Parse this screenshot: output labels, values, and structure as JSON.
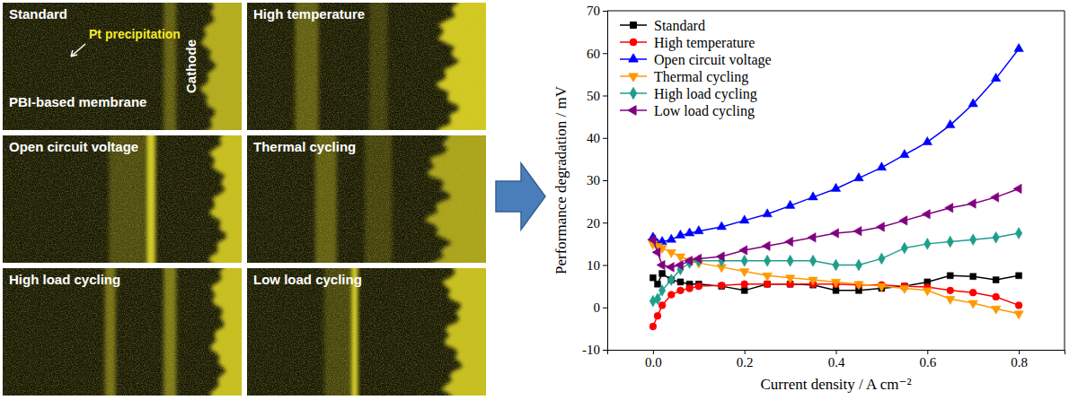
{
  "micrographs": {
    "panels": [
      {
        "title": "Standard",
        "pt_label": "Pt precipitation",
        "membrane_label": "PBI-based membrane",
        "cathode_label": "Cathode"
      },
      {
        "title": "High temperature"
      },
      {
        "title": "Open circuit voltage"
      },
      {
        "title": "Thermal cycling"
      },
      {
        "title": "High load cycling"
      },
      {
        "title": "Low load cycling"
      }
    ]
  },
  "chart_data": {
    "type": "line",
    "x_label": "Current density / A cm⁻²",
    "y_label": "Performance degradation / mV",
    "xlim": [
      -0.1,
      0.9
    ],
    "ylim": [
      -10,
      70
    ],
    "xticks": [
      {
        "value": 0,
        "label": "0.0"
      },
      0.2,
      0.4,
      0.6,
      0.8
    ],
    "yticks": [
      -10,
      0,
      10,
      20,
      30,
      40,
      50,
      60,
      70
    ],
    "grid": false,
    "legend": "upper left",
    "x": [
      0,
      0.01,
      0.02,
      0.04,
      0.06,
      0.08,
      0.1,
      0.15,
      0.2,
      0.25,
      0.3,
      0.35,
      0.4,
      0.45,
      0.5,
      0.55,
      0.6,
      0.65,
      0.7,
      0.75,
      0.8
    ],
    "series": [
      {
        "name": "Standard",
        "color": "#000000",
        "marker": "square",
        "values": [
          7,
          5.5,
          8,
          6.5,
          6,
          5.5,
          5.5,
          5,
          4,
          5.5,
          5.5,
          5.3,
          4,
          4,
          4.5,
          5,
          6,
          7.5,
          7.3,
          6.5,
          7.5
        ]
      },
      {
        "name": "High temperature",
        "color": "#ff0000",
        "marker": "circle",
        "values": [
          -4.5,
          -2,
          0.5,
          3,
          4,
          4.5,
          5,
          5.2,
          5.5,
          5.5,
          5.5,
          5.5,
          5.5,
          5.3,
          5.3,
          5,
          4.8,
          4,
          3.5,
          2.5,
          0.5
        ]
      },
      {
        "name": "Open circuit voltage",
        "color": "#0000ff",
        "marker": "triangle-up",
        "values": [
          16.5,
          15,
          15.5,
          16,
          17,
          17.5,
          18,
          19,
          20.5,
          22,
          24,
          26,
          28,
          30.5,
          33,
          36,
          39,
          43,
          48,
          54,
          61
        ]
      },
      {
        "name": "Thermal cycling",
        "color": "#ff9900",
        "marker": "triangle-down",
        "values": [
          15,
          14.5,
          14,
          13,
          12,
          11,
          10.5,
          9.5,
          8.5,
          7.5,
          7,
          6.5,
          6,
          5.5,
          5,
          4.5,
          4,
          2,
          1,
          -0.3,
          -1.5
        ]
      },
      {
        "name": "High load cycling",
        "color": "#1f9e8c",
        "marker": "diamond",
        "values": [
          1.5,
          2,
          4,
          6.5,
          9,
          10.5,
          11,
          11,
          11,
          11,
          11,
          11,
          10,
          10,
          11.5,
          14,
          15,
          15.5,
          16,
          16.5,
          17.5
        ]
      },
      {
        "name": "Low load cycling",
        "color": "#800080",
        "marker": "triangle-left",
        "values": [
          16,
          13,
          10,
          9.5,
          10,
          11,
          11.5,
          12,
          13.5,
          14.5,
          15.5,
          16.5,
          17.5,
          18,
          19,
          20.5,
          22,
          23.5,
          24.5,
          26,
          28
        ]
      }
    ]
  }
}
